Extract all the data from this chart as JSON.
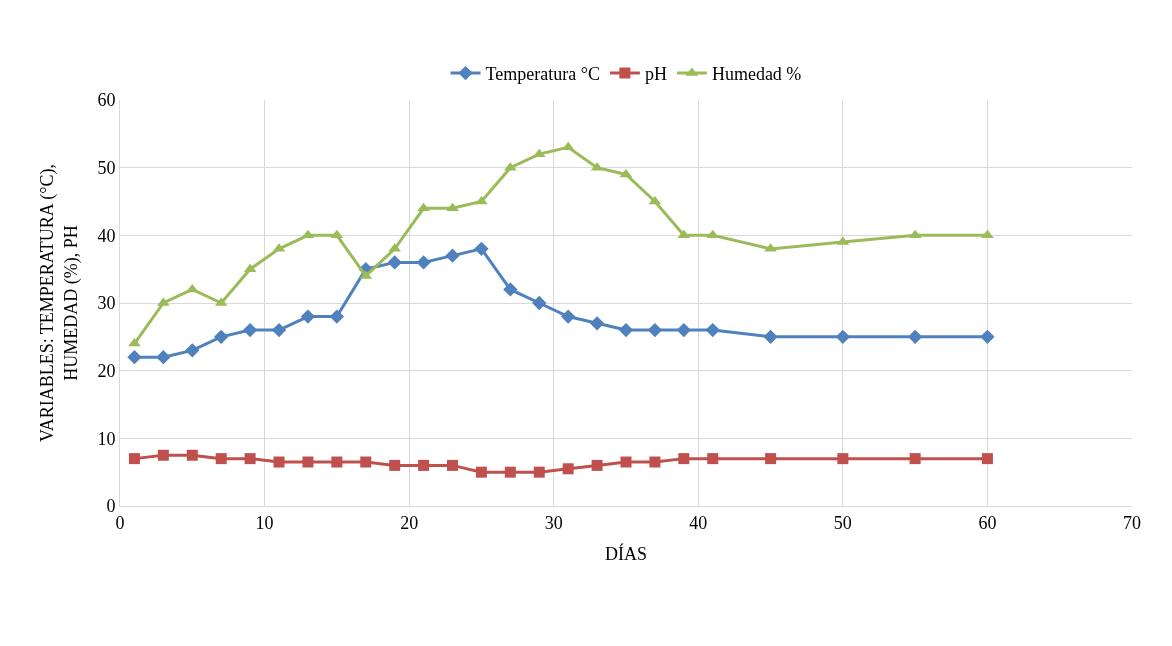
{
  "chart_data": {
    "type": "line",
    "xlabel": "DÍAS",
    "ylabel": "VARIABLES: TEMPERATURA (°C),\nHUMEDAD (%), PH",
    "x": [
      1,
      3,
      5,
      7,
      9,
      11,
      13,
      15,
      17,
      19,
      21,
      23,
      25,
      27,
      29,
      31,
      33,
      35,
      37,
      39,
      41,
      45,
      50,
      55,
      60
    ],
    "series": [
      {
        "name": "Temperatura °C",
        "color": "#4f81bd",
        "marker": "diamond",
        "values": [
          22,
          22,
          23,
          25,
          26,
          26,
          28,
          28,
          35,
          36,
          36,
          37,
          38,
          32,
          30,
          28,
          27,
          26,
          26,
          26,
          26,
          25,
          25,
          25,
          25
        ]
      },
      {
        "name": "pH",
        "color": "#c0504d",
        "marker": "square",
        "values": [
          7,
          7.5,
          7.5,
          7,
          7,
          6.5,
          6.5,
          6.5,
          6.5,
          6,
          6,
          6,
          5,
          5,
          5,
          5.5,
          6,
          6.5,
          6.5,
          7,
          7,
          7,
          7,
          7,
          7
        ]
      },
      {
        "name": "Humedad %",
        "color": "#9bbb59",
        "marker": "triangle",
        "values": [
          24,
          30,
          32,
          30,
          35,
          38,
          40,
          40,
          34,
          38,
          44,
          44,
          45,
          50,
          52,
          53,
          50,
          49,
          45,
          40,
          40,
          38,
          39,
          40,
          40
        ]
      }
    ],
    "xlim": [
      0,
      70
    ],
    "xticks": [
      0,
      10,
      20,
      30,
      40,
      50,
      60,
      70
    ],
    "ylim": [
      0,
      60
    ],
    "yticks": [
      0,
      10,
      20,
      30,
      40,
      50,
      60
    ],
    "grid": true,
    "legend": "top",
    "line_style": "solid"
  }
}
